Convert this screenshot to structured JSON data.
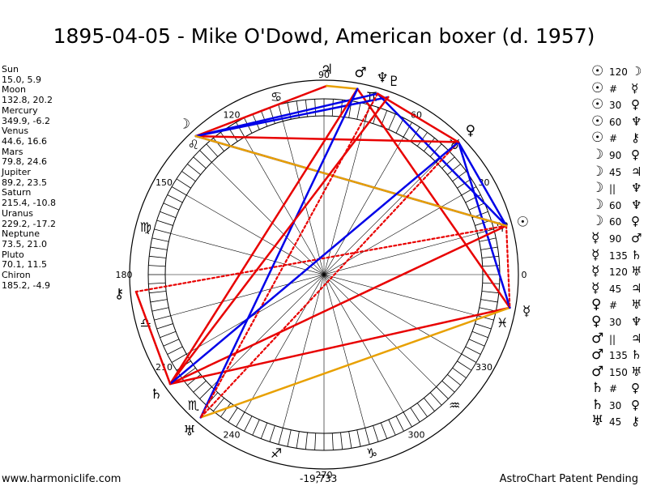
{
  "title": "1895-04-05 - Mike O'Dowd, American boxer (d. 1957)",
  "positions": [
    {
      "name": "Sun",
      "value": "15.0, 5.9"
    },
    {
      "name": "Moon",
      "value": "132.8, 20.2"
    },
    {
      "name": "Mercury",
      "value": "349.9, -6.2"
    },
    {
      "name": "Venus",
      "value": "44.6, 16.6"
    },
    {
      "name": "Mars",
      "value": "79.8, 24.6"
    },
    {
      "name": "Jupiter",
      "value": "89.2, 23.5"
    },
    {
      "name": "Saturn",
      "value": "215.4, -10.8"
    },
    {
      "name": "Uranus",
      "value": "229.2, -17.2"
    },
    {
      "name": "Neptune",
      "value": "73.5, 21.0"
    },
    {
      "name": "Pluto",
      "value": "70.1, 11.5"
    },
    {
      "name": "Chiron",
      "value": "185.2, -4.9"
    }
  ],
  "aspects": [
    {
      "p1": "☉",
      "asp": "120",
      "p2": "☽"
    },
    {
      "p1": "☉",
      "asp": "#",
      "p2": "☿"
    },
    {
      "p1": "☉",
      "asp": "30",
      "p2": "♀"
    },
    {
      "p1": "☉",
      "asp": "60",
      "p2": "♆"
    },
    {
      "p1": "☉",
      "asp": "#",
      "p2": "⚷"
    },
    {
      "p1": "☽",
      "asp": "90",
      "p2": "♀"
    },
    {
      "p1": "☽",
      "asp": "45",
      "p2": "♃"
    },
    {
      "p1": "☽",
      "asp": "||",
      "p2": "♆"
    },
    {
      "p1": "☽",
      "asp": "60",
      "p2": "♆"
    },
    {
      "p1": "☽",
      "asp": "60",
      "p2": "♀"
    },
    {
      "p1": "☿",
      "asp": "90",
      "p2": "♂"
    },
    {
      "p1": "☿",
      "asp": "135",
      "p2": "♄"
    },
    {
      "p1": "☿",
      "asp": "120",
      "p2": "♅"
    },
    {
      "p1": "☿",
      "asp": "45",
      "p2": "♃"
    },
    {
      "p1": "♀",
      "asp": "#",
      "p2": "♅"
    },
    {
      "p1": "♀",
      "asp": "30",
      "p2": "♆"
    },
    {
      "p1": "♂",
      "asp": "||",
      "p2": "♃"
    },
    {
      "p1": "♂",
      "asp": "135",
      "p2": "♄"
    },
    {
      "p1": "♂",
      "asp": "150",
      "p2": "♅"
    },
    {
      "p1": "♄",
      "asp": "#",
      "p2": "♀"
    },
    {
      "p1": "♄",
      "asp": "30",
      "p2": "♀"
    },
    {
      "p1": "♅",
      "asp": "45",
      "p2": "⚷"
    }
  ],
  "footer": {
    "website": "www.harmoniclife.com",
    "center_value": "-19,733",
    "patent": "AstroChart Patent Pending"
  },
  "chart_data": {
    "type": "astrological-wheel",
    "title": "1895-04-05 - Mike O'Dowd, American boxer (d. 1957)",
    "degree_labels": [
      "0",
      "30",
      "60",
      "90",
      "120",
      "150",
      "180",
      "210",
      "240",
      "270",
      "300",
      "330"
    ],
    "planets": [
      {
        "name": "Sun",
        "glyph": "☉",
        "longitude": 15.0
      },
      {
        "name": "Moon",
        "glyph": "☽",
        "longitude": 132.8
      },
      {
        "name": "Mercury",
        "glyph": "☿",
        "longitude": 349.9
      },
      {
        "name": "Venus",
        "glyph": "♀",
        "longitude": 44.6
      },
      {
        "name": "Mars",
        "glyph": "♂",
        "longitude": 79.8
      },
      {
        "name": "Jupiter",
        "glyph": "♃",
        "longitude": 89.2
      },
      {
        "name": "Saturn",
        "glyph": "♄",
        "longitude": 215.4
      },
      {
        "name": "Uranus",
        "glyph": "♅",
        "longitude": 229.2
      },
      {
        "name": "Neptune",
        "glyph": "♆",
        "longitude": 73.5
      },
      {
        "name": "Pluto",
        "glyph": "♇",
        "longitude": 70.1
      },
      {
        "name": "Chiron",
        "glyph": "⚷",
        "longitude": 185.2
      }
    ],
    "signs": [
      {
        "glyph": "♈",
        "start": 0
      },
      {
        "glyph": "♉",
        "start": 30
      },
      {
        "glyph": "♊",
        "start": 60
      },
      {
        "glyph": "♋",
        "start": 90
      },
      {
        "glyph": "♌",
        "start": 120
      },
      {
        "glyph": "♍",
        "start": 150
      },
      {
        "glyph": "♎",
        "start": 180
      },
      {
        "glyph": "♏",
        "start": 210
      },
      {
        "glyph": "♐",
        "start": 240
      },
      {
        "glyph": "♑",
        "start": 270
      },
      {
        "glyph": "♒",
        "start": 300
      },
      {
        "glyph": "♓",
        "start": 330
      }
    ],
    "aspect_lines": [
      {
        "a": 349.9,
        "b": 215.4,
        "color": "#e80000",
        "style": "solid"
      },
      {
        "a": 349.9,
        "b": 229.2,
        "color": "#e8a000",
        "style": "solid"
      },
      {
        "a": 349.9,
        "b": 79.8,
        "color": "#e80000",
        "style": "solid"
      },
      {
        "a": 349.9,
        "b": 44.6,
        "color": "#0000e8",
        "style": "solid"
      },
      {
        "a": 15.0,
        "b": 132.8,
        "color": "#0000e8",
        "style": "solid"
      },
      {
        "a": 15.0,
        "b": 44.6,
        "color": "#0000e8",
        "style": "solid"
      },
      {
        "a": 15.0,
        "b": 73.5,
        "color": "#0000e8",
        "style": "solid"
      },
      {
        "a": 15.0,
        "b": 185.2,
        "color": "#e80000",
        "style": "dotted"
      },
      {
        "a": 15.0,
        "b": 215.4,
        "color": "#e80000",
        "style": "solid"
      },
      {
        "a": 15.0,
        "b": 349.9,
        "color": "#e80000",
        "style": "dotted"
      },
      {
        "a": 132.8,
        "b": 44.6,
        "color": "#e80000",
        "style": "solid"
      },
      {
        "a": 132.8,
        "b": 89.2,
        "color": "#e80000",
        "style": "solid"
      },
      {
        "a": 132.8,
        "b": 73.5,
        "color": "#0000e8",
        "style": "solid"
      },
      {
        "a": 132.8,
        "b": 70.1,
        "color": "#0000e8",
        "style": "solid"
      },
      {
        "a": 132.8,
        "b": 15.0,
        "color": "#e8a000",
        "style": "solid"
      },
      {
        "a": 89.2,
        "b": 79.8,
        "color": "#e8a000",
        "style": "solid"
      },
      {
        "a": 79.8,
        "b": 215.4,
        "color": "#e80000",
        "style": "solid"
      },
      {
        "a": 79.8,
        "b": 229.2,
        "color": "#0000e8",
        "style": "solid"
      },
      {
        "a": 73.5,
        "b": 229.2,
        "color": "#e80000",
        "style": "dotted"
      },
      {
        "a": 70.1,
        "b": 215.4,
        "color": "#e80000",
        "style": "solid"
      },
      {
        "a": 44.6,
        "b": 229.2,
        "color": "#e80000",
        "style": "dotted"
      },
      {
        "a": 44.6,
        "b": 215.4,
        "color": "#0000e8",
        "style": "solid"
      },
      {
        "a": 215.4,
        "b": 185.2,
        "color": "#e80000",
        "style": "solid"
      },
      {
        "a": 44.6,
        "b": 73.5,
        "color": "#e80000",
        "style": "solid"
      }
    ]
  }
}
